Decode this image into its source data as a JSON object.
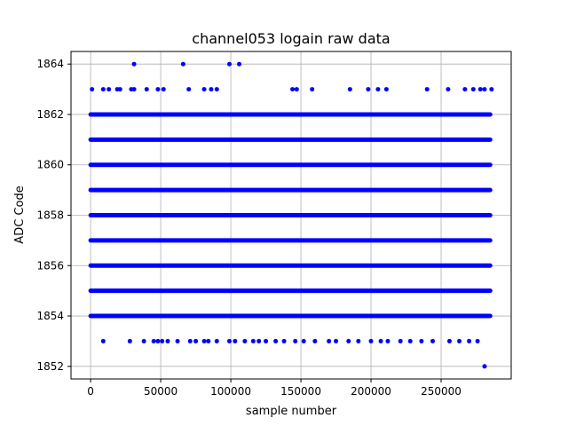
{
  "chart_data": {
    "type": "scatter",
    "title": "channel053 logain raw data",
    "xlabel": "sample number",
    "ylabel": "ADC Code",
    "xlim": [
      -14000,
      300000
    ],
    "ylim": [
      1851.5,
      1864.5
    ],
    "xticks": [
      0,
      50000,
      100000,
      150000,
      200000,
      250000
    ],
    "xtick_labels": [
      "0",
      "50000",
      "100000",
      "150000",
      "200000",
      "250000"
    ],
    "yticks": [
      1852,
      1854,
      1856,
      1858,
      1860,
      1862,
      1864
    ],
    "ytick_labels": [
      "1852",
      "1854",
      "1856",
      "1858",
      "1860",
      "1862",
      "1864"
    ],
    "grid": true,
    "marker_color": "#0000ff",
    "x_range": [
      0,
      285000
    ],
    "series": [
      {
        "dense_levels": [
          1854,
          1855,
          1856,
          1857,
          1858,
          1859,
          1860,
          1861,
          1862
        ],
        "points": [
          {
            "x": 31000,
            "y": 1864
          },
          {
            "x": 66000,
            "y": 1864
          },
          {
            "x": 99000,
            "y": 1864
          },
          {
            "x": 106000,
            "y": 1864
          },
          {
            "x": 1000,
            "y": 1863
          },
          {
            "x": 9000,
            "y": 1863
          },
          {
            "x": 13000,
            "y": 1863
          },
          {
            "x": 19000,
            "y": 1863
          },
          {
            "x": 21000,
            "y": 1863
          },
          {
            "x": 29000,
            "y": 1863
          },
          {
            "x": 31000,
            "y": 1863
          },
          {
            "x": 40000,
            "y": 1863
          },
          {
            "x": 48000,
            "y": 1863
          },
          {
            "x": 52000,
            "y": 1863
          },
          {
            "x": 70000,
            "y": 1863
          },
          {
            "x": 81000,
            "y": 1863
          },
          {
            "x": 86000,
            "y": 1863
          },
          {
            "x": 90000,
            "y": 1863
          },
          {
            "x": 144000,
            "y": 1863
          },
          {
            "x": 147000,
            "y": 1863
          },
          {
            "x": 158000,
            "y": 1863
          },
          {
            "x": 185000,
            "y": 1863
          },
          {
            "x": 198000,
            "y": 1863
          },
          {
            "x": 205000,
            "y": 1863
          },
          {
            "x": 211000,
            "y": 1863
          },
          {
            "x": 240000,
            "y": 1863
          },
          {
            "x": 255000,
            "y": 1863
          },
          {
            "x": 267000,
            "y": 1863
          },
          {
            "x": 273000,
            "y": 1863
          },
          {
            "x": 278000,
            "y": 1863
          },
          {
            "x": 281000,
            "y": 1863
          },
          {
            "x": 286000,
            "y": 1863
          },
          {
            "x": 9000,
            "y": 1853
          },
          {
            "x": 28000,
            "y": 1853
          },
          {
            "x": 38000,
            "y": 1853
          },
          {
            "x": 45000,
            "y": 1853
          },
          {
            "x": 48000,
            "y": 1853
          },
          {
            "x": 51000,
            "y": 1853
          },
          {
            "x": 55000,
            "y": 1853
          },
          {
            "x": 62000,
            "y": 1853
          },
          {
            "x": 71000,
            "y": 1853
          },
          {
            "x": 75000,
            "y": 1853
          },
          {
            "x": 81000,
            "y": 1853
          },
          {
            "x": 84000,
            "y": 1853
          },
          {
            "x": 90000,
            "y": 1853
          },
          {
            "x": 99000,
            "y": 1853
          },
          {
            "x": 103000,
            "y": 1853
          },
          {
            "x": 110000,
            "y": 1853
          },
          {
            "x": 116000,
            "y": 1853
          },
          {
            "x": 120000,
            "y": 1853
          },
          {
            "x": 125000,
            "y": 1853
          },
          {
            "x": 132000,
            "y": 1853
          },
          {
            "x": 138000,
            "y": 1853
          },
          {
            "x": 146000,
            "y": 1853
          },
          {
            "x": 152000,
            "y": 1853
          },
          {
            "x": 160000,
            "y": 1853
          },
          {
            "x": 170000,
            "y": 1853
          },
          {
            "x": 175000,
            "y": 1853
          },
          {
            "x": 184000,
            "y": 1853
          },
          {
            "x": 191000,
            "y": 1853
          },
          {
            "x": 200000,
            "y": 1853
          },
          {
            "x": 207000,
            "y": 1853
          },
          {
            "x": 212000,
            "y": 1853
          },
          {
            "x": 221000,
            "y": 1853
          },
          {
            "x": 228000,
            "y": 1853
          },
          {
            "x": 236000,
            "y": 1853
          },
          {
            "x": 244000,
            "y": 1853
          },
          {
            "x": 256000,
            "y": 1853
          },
          {
            "x": 263000,
            "y": 1853
          },
          {
            "x": 270000,
            "y": 1853
          },
          {
            "x": 276000,
            "y": 1853
          },
          {
            "x": 281000,
            "y": 1852
          }
        ]
      }
    ]
  }
}
